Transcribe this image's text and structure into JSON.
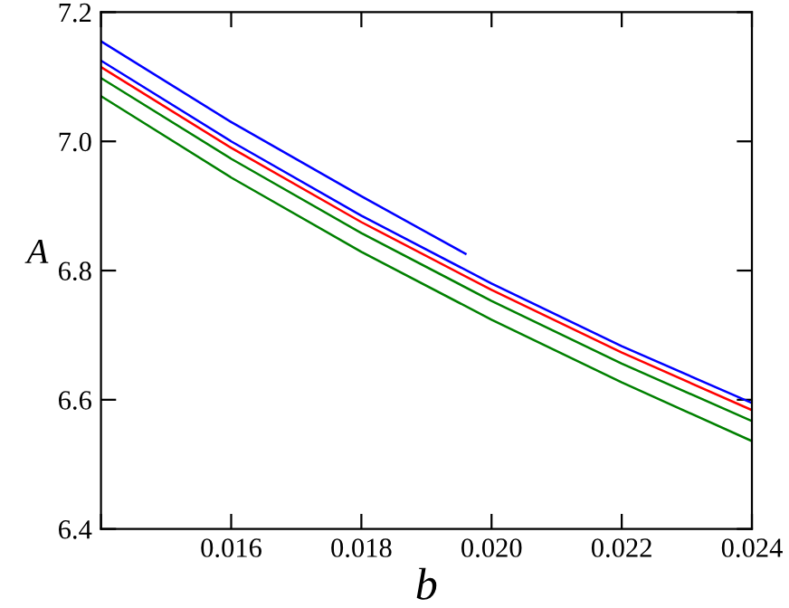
{
  "chart_data": {
    "type": "line",
    "xlabel": "b",
    "ylabel": "A",
    "xlim": [
      0.014,
      0.024
    ],
    "xticks": [
      {
        "value": 0.014,
        "label": null
      },
      0.016,
      0.018,
      "0.020",
      0.022,
      0.024
    ],
    "ylim": [
      6.4,
      7.2
    ],
    "yticks": [
      6.4,
      6.6,
      6.8,
      "7.0",
      7.2
    ],
    "grid": false,
    "marker": "none",
    "line_style": "solid",
    "series": [
      {
        "color": "#0000ff",
        "x": [
          0.014,
          0.016,
          0.018,
          0.0196
        ],
        "values": [
          7.155,
          7.03,
          6.915,
          6.826
        ]
      },
      {
        "color": "#0000ff",
        "x": [
          0.014,
          0.016,
          0.018,
          0.02,
          0.022,
          0.024
        ],
        "values": [
          7.125,
          7.0,
          6.885,
          6.78,
          6.683,
          6.595
        ]
      },
      {
        "color": "#ff0000",
        "x": [
          0.014,
          0.016,
          0.018,
          0.02,
          0.022,
          0.024
        ],
        "values": [
          7.115,
          6.99,
          6.875,
          6.77,
          6.673,
          6.584
        ]
      },
      {
        "color": "#008000",
        "x": [
          0.014,
          0.016,
          0.018,
          0.02,
          0.022,
          0.024
        ],
        "values": [
          7.098,
          6.973,
          6.858,
          6.753,
          6.656,
          6.567
        ]
      },
      {
        "color": "#008000",
        "x": [
          0.014,
          0.016,
          0.018,
          0.02,
          0.022,
          0.024
        ],
        "values": [
          7.07,
          6.944,
          6.829,
          6.724,
          6.627,
          6.536
        ]
      }
    ]
  }
}
